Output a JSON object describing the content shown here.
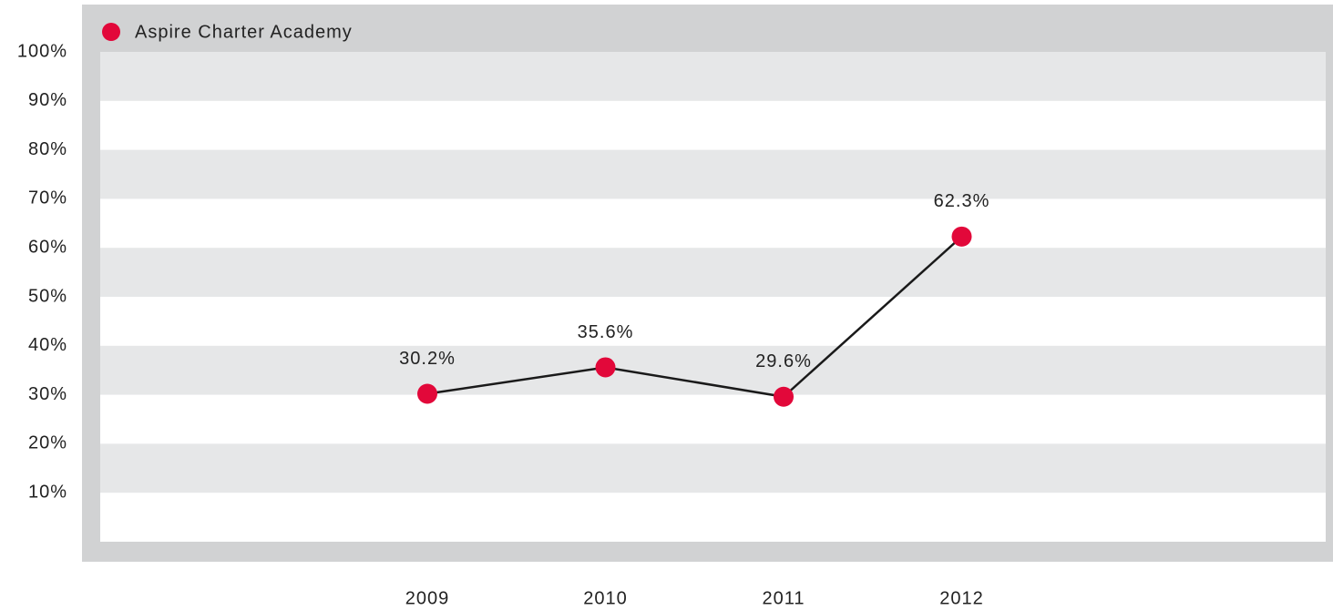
{
  "chart_data": {
    "type": "line",
    "categories": [
      "2009",
      "2010",
      "2011",
      "2012"
    ],
    "series": [
      {
        "name": "Aspire Charter Academy",
        "color": "#e2083a",
        "values": [
          30.2,
          35.6,
          29.6,
          62.3
        ],
        "value_labels": [
          "30.2%",
          "35.6%",
          "29.6%",
          "62.3%"
        ]
      }
    ],
    "ylim": [
      0,
      100
    ],
    "yticks": [
      {
        "value": 10,
        "label": "10%"
      },
      {
        "value": 20,
        "label": "20%"
      },
      {
        "value": 30,
        "label": "30%"
      },
      {
        "value": 40,
        "label": "40%"
      },
      {
        "value": 50,
        "label": "50%"
      },
      {
        "value": 60,
        "label": "60%"
      },
      {
        "value": 70,
        "label": "70%"
      },
      {
        "value": 80,
        "label": "80%"
      },
      {
        "value": 90,
        "label": "90%"
      },
      {
        "value": 100,
        "label": "100%"
      }
    ],
    "grid": true
  }
}
